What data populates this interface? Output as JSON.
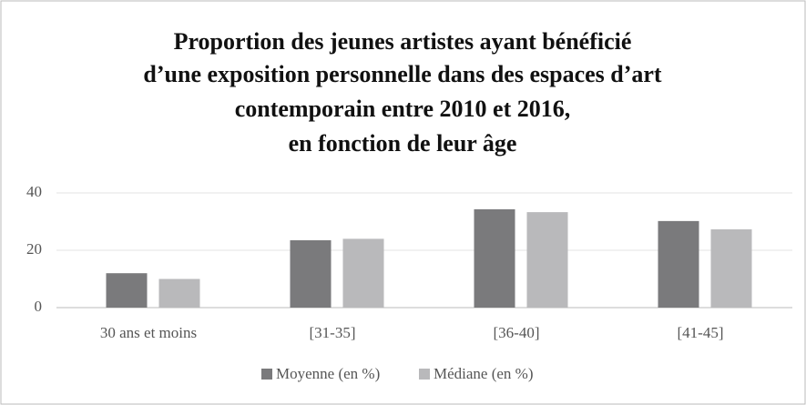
{
  "chart_data": {
    "type": "bar",
    "title": [
      "Proportion des jeunes artistes ayant bénéficié",
      "d’une exposition personnelle dans des espaces d’art",
      "contemporain entre 2010 et 2016,",
      "en fonction de leur âge"
    ],
    "categories": [
      "30 ans et moins",
      "[31-35]",
      "[36-40]",
      "[41-45]"
    ],
    "series": [
      {
        "name": "Moyenne (en %)",
        "color": "#7a7a7c",
        "values": [
          12,
          23.5,
          34.3,
          30.2
        ]
      },
      {
        "name": "Médiane (en %)",
        "color": "#b9b9bb",
        "values": [
          10,
          24,
          33.3,
          27.3
        ]
      }
    ],
    "ylim": [
      0,
      40
    ],
    "yticks": [
      0,
      20,
      40
    ],
    "grid": true,
    "legend": "bottom"
  }
}
